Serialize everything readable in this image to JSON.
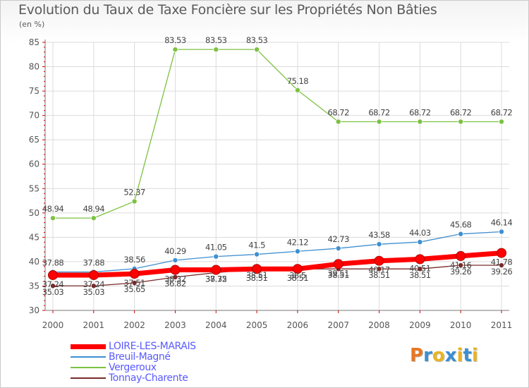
{
  "title": "Evolution du Taux de Taxe Foncière sur les Propriétés Non Bâties",
  "unit": "(en %)",
  "brand": {
    "letters": [
      "P",
      "r",
      "o",
      "x",
      "i",
      "t",
      "i"
    ],
    "colors": [
      "#e87722",
      "#3a8fd1",
      "#e8b422",
      "#3a8fd1",
      "#e8b422",
      "#3a8fd1",
      "#e8b422"
    ]
  },
  "chart_data": {
    "type": "line",
    "title": "Evolution du Taux de Taxe Foncière sur les Propriétés Non Bâties",
    "ylabel": "(en %)",
    "xlabel": "",
    "x": [
      "2000",
      "2001",
      "2002",
      "2003",
      "2004",
      "2005",
      "2006",
      "2007",
      "2008",
      "2009",
      "2010",
      "2011"
    ],
    "ylim": [
      30,
      85
    ],
    "yticks": [
      30,
      35,
      40,
      45,
      50,
      55,
      60,
      65,
      70,
      75,
      80,
      85
    ],
    "grid": true,
    "legend_position": "bottom-left",
    "series": [
      {
        "name": "LOIRE-LES-MARAIS",
        "color": "#ff0000",
        "values": [
          37.24,
          37.24,
          37.51,
          38.32,
          38.32,
          38.51,
          38.51,
          39.51,
          40.17,
          40.51,
          41.16,
          41.78
        ],
        "labels": [
          "37.24",
          "37.24",
          "37.51",
          "38.32",
          "38.32",
          "38.51",
          "38.51",
          "39.51",
          "40.17",
          "40.51",
          "41.16",
          "41.78"
        ]
      },
      {
        "name": "Breuil-Magné",
        "color": "#3f8fd0",
        "values": [
          37.88,
          37.88,
          38.56,
          40.29,
          41.05,
          41.5,
          42.12,
          42.73,
          43.58,
          44.03,
          45.68,
          46.14
        ],
        "labels": [
          "37.88",
          "37.88",
          "38.56",
          "40.29",
          "41.05",
          "41.5",
          "42.12",
          "42.73",
          "43.58",
          "44.03",
          "45.68",
          "46.14"
        ]
      },
      {
        "name": "Vergeroux",
        "color": "#7cc242",
        "values": [
          48.94,
          48.94,
          52.37,
          83.53,
          83.53,
          83.53,
          75.18,
          68.72,
          68.72,
          68.72,
          68.72,
          68.72
        ],
        "labels": [
          "48.94",
          "48.94",
          "52.37",
          "83.53",
          "83.53",
          "83.53",
          "75.18",
          "68.72",
          "68.72",
          "68.72",
          "68.72",
          "68.72"
        ]
      },
      {
        "name": "Tonnay-Charente",
        "color": "#7a2a2a",
        "values": [
          35.03,
          35.03,
          35.65,
          36.82,
          37.75,
          38.51,
          38.5,
          38.51,
          38.51,
          38.51,
          39.26,
          39.26
        ],
        "labels": [
          "35.03",
          "35.03",
          "35.65",
          "36.82",
          "37.75",
          "38.51",
          "38.5",
          "38.51",
          "38.51",
          "38.51",
          "39.26",
          "39.26"
        ]
      }
    ]
  }
}
